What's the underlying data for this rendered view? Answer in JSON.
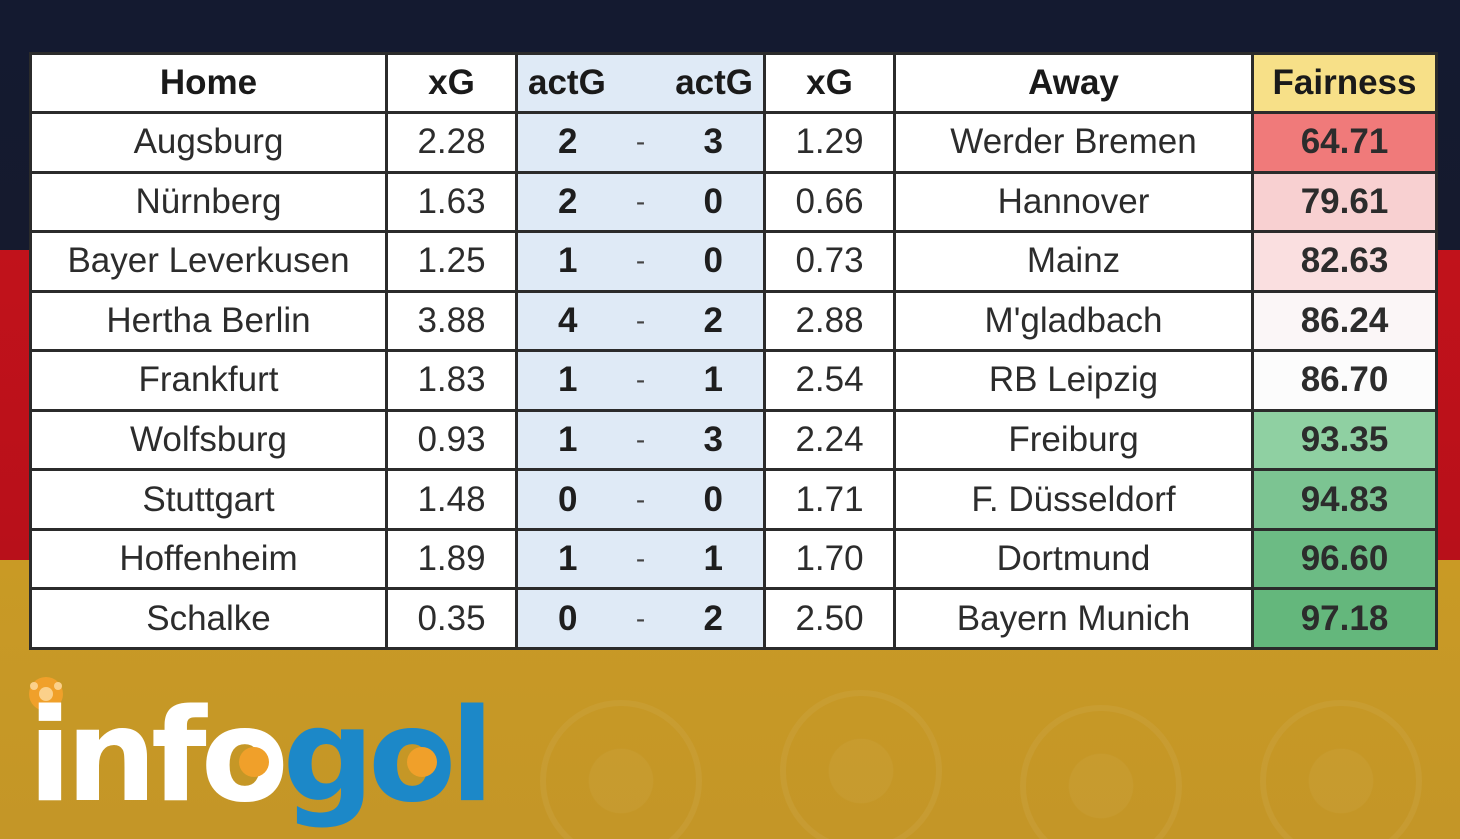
{
  "columns": {
    "home": "Home",
    "xg_home": "xG",
    "act_home": "actG",
    "act_away": "actG",
    "xg_away": "xG",
    "away": "Away",
    "fairness": "Fairness"
  },
  "score_separator": "-",
  "rows": [
    {
      "home": "Augsburg",
      "xg_home": "2.28",
      "g_home": "2",
      "g_away": "3",
      "xg_away": "1.29",
      "away": "Werder Bremen",
      "fairness": "64.71",
      "fairness_color": "#f07a7a"
    },
    {
      "home": "Nürnberg",
      "xg_home": "1.63",
      "g_home": "2",
      "g_away": "0",
      "xg_away": "0.66",
      "away": "Hannover",
      "fairness": "79.61",
      "fairness_color": "#f8d0d1"
    },
    {
      "home": "Bayer Leverkusen",
      "xg_home": "1.25",
      "g_home": "1",
      "g_away": "0",
      "xg_away": "0.73",
      "away": "Mainz",
      "fairness": "82.63",
      "fairness_color": "#fadfe0"
    },
    {
      "home": "Hertha Berlin",
      "xg_home": "3.88",
      "g_home": "4",
      "g_away": "2",
      "xg_away": "2.88",
      "away": "M'gladbach",
      "fairness": "86.24",
      "fairness_color": "#fbf6f7"
    },
    {
      "home": "Frankfurt",
      "xg_home": "1.83",
      "g_home": "1",
      "g_away": "1",
      "xg_away": "2.54",
      "away": "RB Leipzig",
      "fairness": "86.70",
      "fairness_color": "#fcfcfc"
    },
    {
      "home": "Wolfsburg",
      "xg_home": "0.93",
      "g_home": "1",
      "g_away": "3",
      "xg_away": "2.24",
      "away": "Freiburg",
      "fairness": "93.35",
      "fairness_color": "#8fd0a2"
    },
    {
      "home": "Stuttgart",
      "xg_home": "1.48",
      "g_home": "0",
      "g_away": "0",
      "xg_away": "1.71",
      "away": "F. Düsseldorf",
      "fairness": "94.83",
      "fairness_color": "#7cc492"
    },
    {
      "home": "Hoffenheim",
      "xg_home": "1.89",
      "g_home": "1",
      "g_away": "1",
      "xg_away": "1.70",
      "away": "Dortmund",
      "fairness": "96.60",
      "fairness_color": "#6cbb84"
    },
    {
      "home": "Schalke",
      "xg_home": "0.35",
      "g_home": "0",
      "g_away": "2",
      "xg_away": "2.50",
      "away": "Bayern Munich",
      "fairness": "97.18",
      "fairness_color": "#64b77c"
    }
  ],
  "chart_data": {
    "type": "table",
    "headers": [
      "Home",
      "xG",
      "actG",
      "actG",
      "xG",
      "Away",
      "Fairness"
    ],
    "rows": [
      [
        "Augsburg",
        2.28,
        2,
        3,
        1.29,
        "Werder Bremen",
        64.71
      ],
      [
        "Nürnberg",
        1.63,
        2,
        0,
        0.66,
        "Hannover",
        79.61
      ],
      [
        "Bayer Leverkusen",
        1.25,
        1,
        0,
        0.73,
        "Mainz",
        82.63
      ],
      [
        "Hertha Berlin",
        3.88,
        4,
        2,
        2.88,
        "M'gladbach",
        86.24
      ],
      [
        "Frankfurt",
        1.83,
        1,
        1,
        2.54,
        "RB Leipzig",
        86.7
      ],
      [
        "Wolfsburg",
        0.93,
        1,
        3,
        2.24,
        "Freiburg",
        93.35
      ],
      [
        "Stuttgart",
        1.48,
        0,
        0,
        1.71,
        "F. Düsseldorf",
        94.83
      ],
      [
        "Hoffenheim",
        1.89,
        1,
        1,
        1.7,
        "Dortmund",
        96.6
      ],
      [
        "Schalke",
        0.35,
        0,
        2,
        2.5,
        "Bayern Munich",
        97.18
      ]
    ]
  },
  "logo": {
    "text": "infogol",
    "icon": "football-icon",
    "color_white": "#ffffff",
    "color_blue": "#1c88c8",
    "color_orange": "#f0a02a"
  },
  "colors": {
    "flag_black": "#141a30",
    "flag_red": "#c1121b",
    "flag_gold": "#c99a25",
    "score_bg": "#dfeaf6",
    "fairness_header_bg": "#f7e088"
  }
}
